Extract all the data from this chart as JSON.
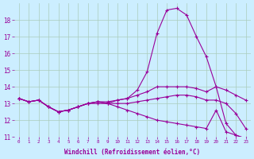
{
  "background_color": "#cceeff",
  "grid_color": "#aaccbb",
  "line_color": "#990099",
  "xlabel": "Windchill (Refroidissement éolien,°C)",
  "hours": [
    0,
    1,
    2,
    3,
    4,
    5,
    6,
    7,
    8,
    9,
    10,
    11,
    12,
    13,
    14,
    15,
    16,
    17,
    18,
    19,
    20,
    21,
    22,
    23
  ],
  "line1": [
    13.3,
    13.1,
    13.2,
    12.8,
    12.5,
    12.6,
    12.8,
    13.0,
    13.1,
    13.0,
    13.2,
    13.3,
    13.8,
    14.9,
    17.2,
    18.6,
    18.7,
    18.3,
    17.0,
    15.8,
    14.0,
    11.8,
    11.1,
    10.9
  ],
  "line2": [
    13.3,
    13.1,
    13.2,
    12.8,
    12.5,
    12.6,
    12.8,
    13.0,
    13.1,
    13.1,
    13.2,
    13.3,
    13.5,
    13.7,
    14.0,
    14.0,
    14.0,
    14.0,
    13.9,
    13.7,
    14.0,
    13.8,
    13.5,
    13.2
  ],
  "line3": [
    13.3,
    13.1,
    13.2,
    12.8,
    12.5,
    12.6,
    12.8,
    13.0,
    13.1,
    13.0,
    12.8,
    12.6,
    12.4,
    12.2,
    12.0,
    11.9,
    11.8,
    11.7,
    11.6,
    11.5,
    12.6,
    11.3,
    11.1,
    10.9
  ],
  "line4": [
    13.3,
    13.1,
    13.2,
    12.8,
    12.5,
    12.6,
    12.8,
    13.0,
    13.0,
    13.0,
    13.0,
    13.0,
    13.1,
    13.2,
    13.3,
    13.4,
    13.5,
    13.5,
    13.4,
    13.2,
    13.2,
    13.0,
    12.4,
    11.5
  ],
  "ylim": [
    11,
    19
  ],
  "yticks": [
    11,
    12,
    13,
    14,
    15,
    16,
    17,
    18
  ],
  "xlim": [
    -0.5,
    23.5
  ]
}
